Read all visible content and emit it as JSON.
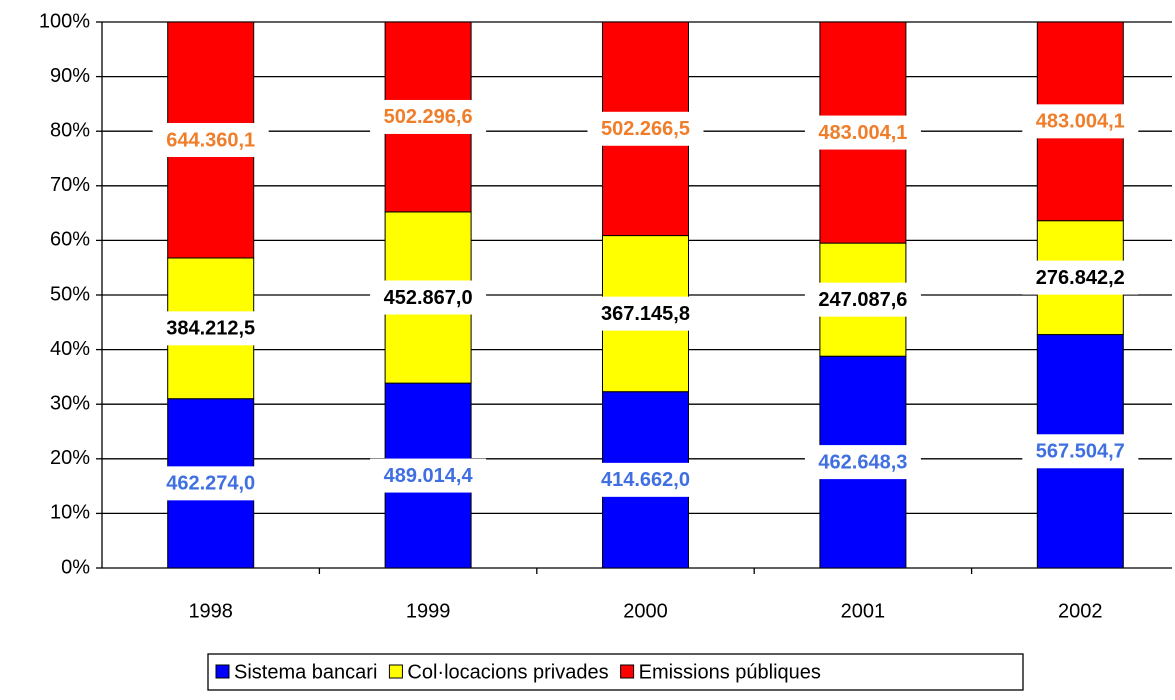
{
  "chart_data": {
    "type": "bar",
    "stacking": "percent",
    "categories": [
      "1998",
      "1999",
      "2000",
      "2001",
      "2002"
    ],
    "series": [
      {
        "name": "Sistema bancari",
        "color": "#0000ff",
        "label_color": "#3f6fe0",
        "values": [
          462274.0,
          489014.4,
          414662.0,
          462648.3,
          567504.7
        ],
        "value_labels": [
          "462.274,0",
          "489.014,4",
          "414.662,0",
          "462.648,3",
          "567.504,7"
        ]
      },
      {
        "name": "Col·locacions privades",
        "color": "#ffff00",
        "label_color": "#000000",
        "values": [
          384212.5,
          452867.0,
          367145.8,
          247087.6,
          276842.2
        ],
        "value_labels": [
          "384.212,5",
          "452.867,0",
          "367.145,8",
          "247.087,6",
          "276.842,2"
        ]
      },
      {
        "name": "Emissions públiques",
        "color": "#ff0000",
        "label_color": "#f07d2a",
        "values": [
          644360.1,
          502296.6,
          502266.5,
          483004.1,
          483004.1
        ],
        "value_labels": [
          "644.360,1",
          "502.296,6",
          "502.266,5",
          "483.004,1",
          "483.004,1"
        ]
      }
    ],
    "ylim": [
      0,
      100
    ],
    "yticks": [
      {
        "value": 0,
        "label": "0%"
      },
      {
        "value": 10,
        "label": "10%"
      },
      {
        "value": 20,
        "label": "20%"
      },
      {
        "value": 30,
        "label": "30%"
      },
      {
        "value": 40,
        "label": "40%"
      },
      {
        "value": 50,
        "label": "50%"
      },
      {
        "value": 60,
        "label": "60%"
      },
      {
        "value": 70,
        "label": "70%"
      },
      {
        "value": 80,
        "label": "80%"
      },
      {
        "value": 90,
        "label": "90%"
      },
      {
        "value": 100,
        "label": "100%"
      }
    ],
    "grid": true,
    "legend": "bottom"
  }
}
